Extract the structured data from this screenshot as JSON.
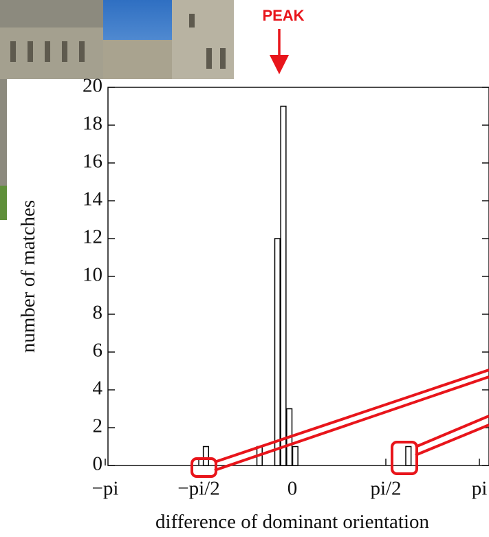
{
  "chart_data": {
    "type": "histogram",
    "annotation": "PEAK",
    "xlabel": "difference of dominant orientation",
    "ylabel": "number of matches",
    "bins": [
      -1.6,
      -1.5,
      -1.4,
      -1.3,
      -1.2,
      -1.1,
      -1.0,
      -0.9,
      -0.8,
      -0.7,
      -0.6,
      -0.5,
      -0.4,
      -0.3,
      -0.2,
      -0.1,
      0.0,
      0.1,
      0.2,
      0.3,
      0.4,
      0.5,
      0.6,
      0.7,
      0.8,
      0.9,
      1.0,
      1.1,
      1.2,
      1.3,
      1.4,
      1.5,
      1.6,
      1.7,
      1.8,
      1.9,
      2.0
    ],
    "values": [
      0,
      1,
      0,
      0,
      0,
      0,
      0,
      0,
      0,
      0,
      1,
      0,
      0,
      12,
      19,
      3,
      1,
      0,
      0,
      0,
      0,
      0,
      0,
      0,
      0,
      0,
      0,
      0,
      0,
      0,
      0,
      0,
      0,
      0,
      0,
      1
    ],
    "color": "#000000",
    "xlim": [
      -3.1416,
      3.1416
    ],
    "xticks": [
      {
        "value": -3.1416,
        "label": "−pi"
      },
      {
        "value": -1.5708,
        "label": "−pi/2"
      },
      0,
      {
        "value": 1.5708,
        "label": "pi/2"
      },
      {
        "value": 3.1416,
        "label": "pi"
      }
    ],
    "ylim": [
      0,
      20
    ],
    "yticks": [
      0,
      2,
      4,
      6,
      8,
      10,
      12,
      14,
      16,
      18,
      20
    ]
  }
}
